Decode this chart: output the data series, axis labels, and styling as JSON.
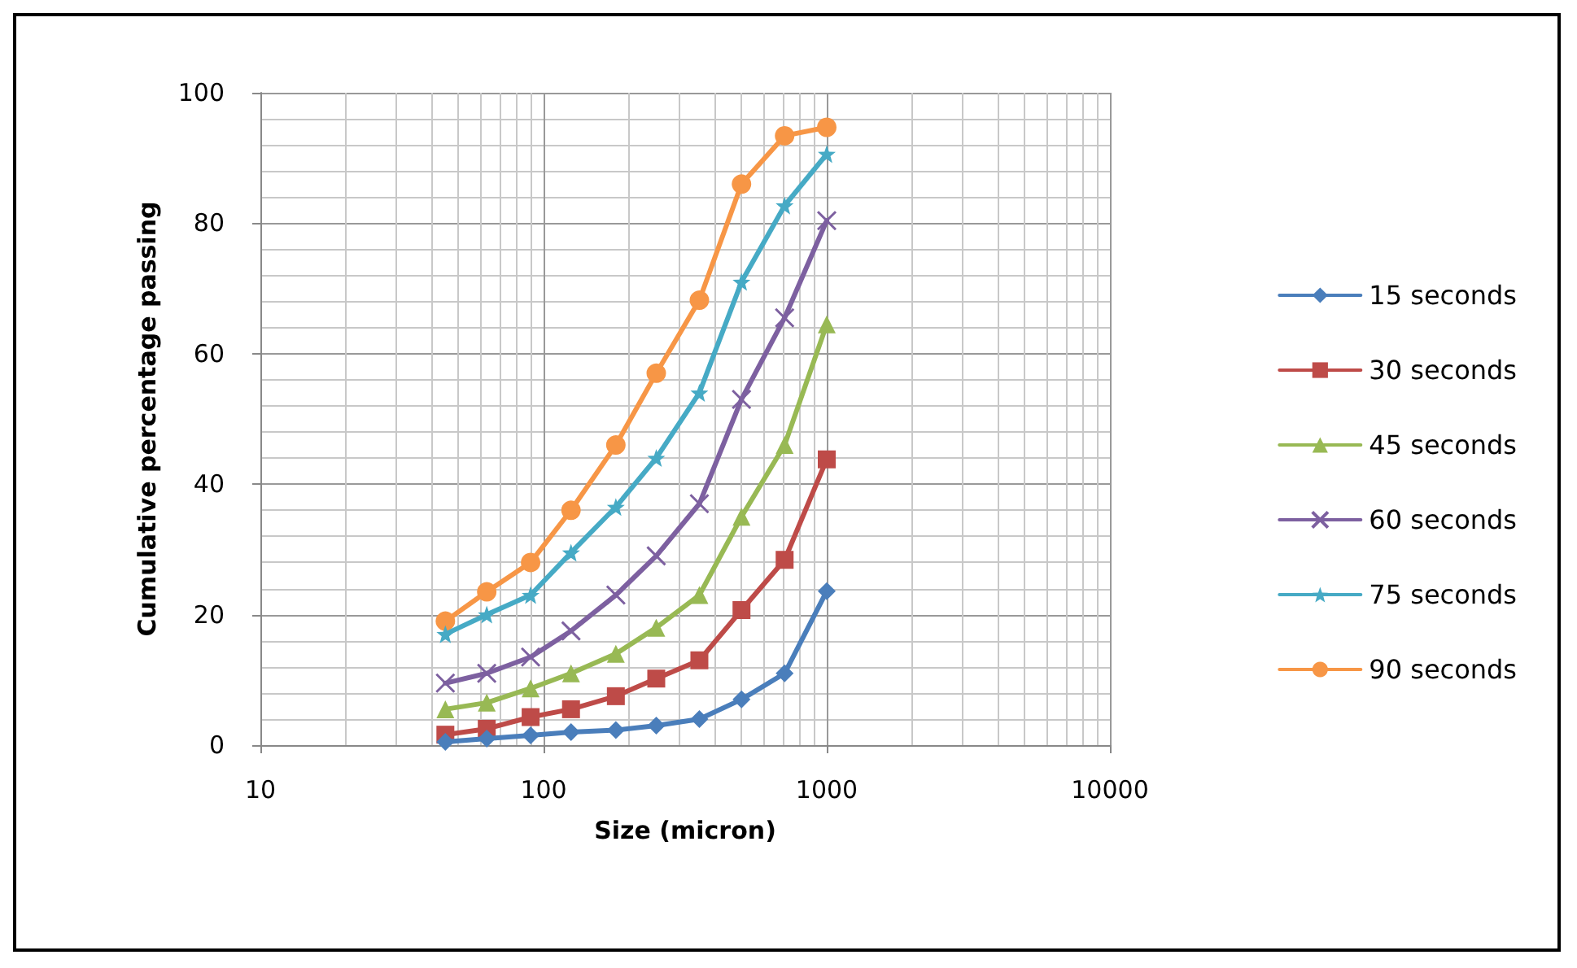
{
  "chart_data": {
    "type": "line",
    "xlabel": "Size (micron)",
    "ylabel": "Cumulative percentage passing",
    "x": [
      45,
      63,
      90,
      125,
      180,
      250,
      355,
      500,
      710,
      1000
    ],
    "series": [
      {
        "name": "15 seconds",
        "color": "#4a7ebb",
        "marker": "diamond",
        "values": [
          0.5,
          1,
          1.5,
          2,
          2.3,
          3,
          4,
          7,
          11,
          23.6
        ]
      },
      {
        "name": "30 seconds",
        "color": "#be4b48",
        "marker": "square",
        "values": [
          1.6,
          2.5,
          4.3,
          5.5,
          7.5,
          10.2,
          13,
          20.7,
          28.4,
          43.8
        ]
      },
      {
        "name": "45 seconds",
        "color": "#98b954",
        "marker": "triangle",
        "values": [
          5.5,
          6.5,
          8.7,
          11,
          14,
          18,
          23,
          35,
          46,
          64.5
        ]
      },
      {
        "name": "60 seconds",
        "color": "#7d60a0",
        "marker": "cross",
        "values": [
          9.5,
          11,
          13.5,
          17.5,
          23,
          29,
          37,
          53,
          65.5,
          80.4
        ]
      },
      {
        "name": "75 seconds",
        "color": "#46aac5",
        "marker": "star",
        "values": [
          17,
          20,
          23,
          29.5,
          36.5,
          44,
          54,
          71,
          82.7,
          90.6
        ]
      },
      {
        "name": "90 seconds",
        "color": "#f79646",
        "marker": "circle",
        "values": [
          19,
          23.5,
          28,
          36,
          46,
          57,
          68.2,
          86,
          93.4,
          94.7
        ]
      }
    ],
    "log": "x",
    "xlim": [
      10,
      10000
    ],
    "xticks": [
      10,
      100,
      1000,
      10000
    ],
    "ylim": [
      0,
      100
    ],
    "yticks": [
      0,
      20,
      40,
      60,
      80,
      100
    ],
    "grid": true,
    "legend": "right"
  }
}
